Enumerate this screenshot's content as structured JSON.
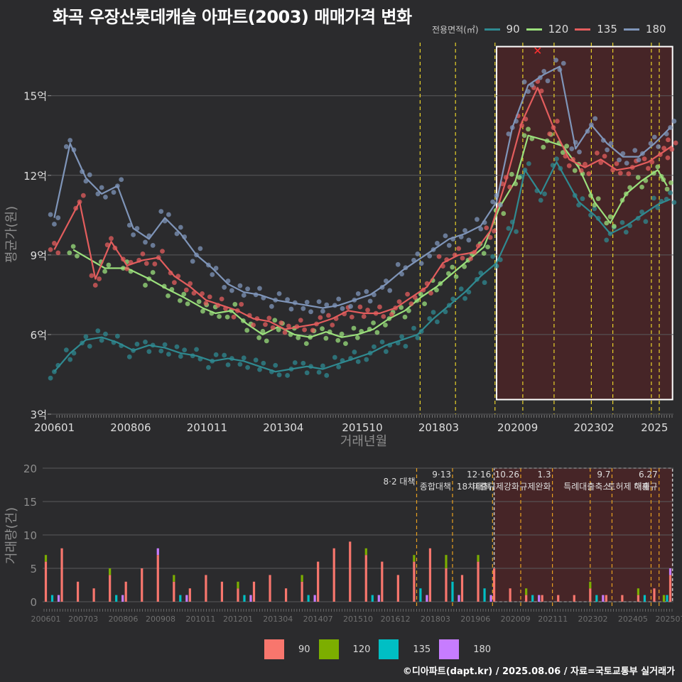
{
  "chart_data": [
    {
      "type": "line",
      "title": "화곡 우장산롯데캐슬 아파트(2003) 매매가격 변화",
      "xlabel": "거래년월",
      "ylabel": "평균가(원)",
      "x_ticks": [
        "200601",
        "200806",
        "201011",
        "201304",
        "201510",
        "201803",
        "202009",
        "202302",
        "2025"
      ],
      "y_ticks": [
        {
          "value": 3,
          "label": "3억"
        },
        {
          "value": 6,
          "label": "6억"
        },
        {
          "value": 9,
          "label": "9억"
        },
        {
          "value": 12,
          "label": "12억"
        },
        {
          "value": 15,
          "label": "15억"
        }
      ],
      "ylim": [
        3,
        17
      ],
      "xlim": [
        2005.9,
        2025.6
      ],
      "legend_title": "전용면적(㎡)",
      "legend_position": "top-right",
      "grid": true,
      "policy_lines_x": [
        2017.58,
        2018.7,
        2019.95,
        2020.83,
        2021.82,
        2023.0,
        2023.68,
        2024.9,
        2025.15
      ],
      "highlight_box": {
        "x": [
          2020.0,
          2025.57
        ],
        "y": [
          3.55,
          16.85
        ]
      },
      "highlight_marker": {
        "x": 2021.3,
        "y": 16.7
      },
      "series": [
        {
          "name": "90",
          "color": "#2f8a91",
          "scatter": true,
          "x": [
            2006.0,
            2006.5,
            2007.0,
            2007.5,
            2008.0,
            2008.5,
            2009.0,
            2009.5,
            2010.0,
            2010.5,
            2011.0,
            2011.5,
            2012.0,
            2012.5,
            2013.0,
            2013.5,
            2014.0,
            2014.5,
            2015.0,
            2015.5,
            2016.0,
            2016.5,
            2017.0,
            2017.5,
            2018.0,
            2018.5,
            2019.0,
            2019.5,
            2020.0,
            2020.5,
            2020.9,
            2021.4,
            2021.9,
            2022.6,
            2023.1,
            2023.6,
            2024.1,
            2024.6,
            2025.1,
            2025.5
          ],
          "y": [
            4.6,
            5.3,
            5.8,
            5.9,
            5.7,
            5.4,
            5.6,
            5.5,
            5.3,
            5.2,
            5.0,
            5.1,
            5.0,
            4.8,
            4.6,
            4.7,
            4.8,
            4.7,
            4.9,
            5.1,
            5.3,
            5.6,
            5.8,
            6.0,
            6.6,
            7.1,
            7.6,
            8.2,
            8.7,
            10.0,
            12.2,
            11.3,
            12.5,
            11.0,
            10.5,
            9.8,
            10.1,
            10.5,
            10.9,
            11.1
          ]
        },
        {
          "name": "120",
          "color": "#9be07c",
          "scatter": true,
          "x": [
            2006.6,
            2007.6,
            2008.3,
            2009.0,
            2009.6,
            2010.1,
            2010.7,
            2011.1,
            2011.6,
            2012.1,
            2012.6,
            2013.1,
            2013.6,
            2014.1,
            2014.6,
            2015.1,
            2015.6,
            2016.1,
            2016.6,
            2017.1,
            2017.6,
            2018.1,
            2018.6,
            2019.1,
            2019.6,
            2020.1,
            2020.6,
            2021.0,
            2021.6,
            2022.1,
            2022.6,
            2023.1,
            2023.6,
            2024.1,
            2024.6,
            2025.1,
            2025.4
          ],
          "y": [
            9.2,
            8.5,
            8.5,
            8.1,
            7.7,
            7.4,
            7.0,
            6.8,
            6.9,
            6.4,
            6.0,
            6.3,
            6.0,
            5.9,
            6.1,
            5.9,
            6.0,
            6.2,
            6.6,
            6.9,
            7.4,
            7.8,
            8.3,
            8.8,
            9.3,
            10.8,
            11.8,
            13.5,
            13.3,
            13.1,
            12.3,
            11.0,
            10.2,
            11.3,
            11.8,
            12.2,
            11.6
          ]
        },
        {
          "name": "135",
          "color": "#e35d5d",
          "scatter": true,
          "x": [
            2006.0,
            2006.8,
            2007.3,
            2007.8,
            2008.3,
            2008.8,
            2009.3,
            2009.8,
            2010.3,
            2010.8,
            2011.3,
            2011.8,
            2012.3,
            2012.8,
            2013.3,
            2013.8,
            2014.3,
            2014.8,
            2015.3,
            2015.8,
            2016.3,
            2016.8,
            2017.3,
            2017.8,
            2018.3,
            2018.8,
            2019.3,
            2019.8,
            2020.3,
            2020.8,
            2021.3,
            2021.8,
            2022.3,
            2022.8,
            2023.3,
            2023.8,
            2024.3,
            2024.8,
            2025.3,
            2025.55
          ],
          "y": [
            9.2,
            11.0,
            8.1,
            9.5,
            8.6,
            8.8,
            8.9,
            8.2,
            7.8,
            7.3,
            7.1,
            6.9,
            6.6,
            6.5,
            6.2,
            6.3,
            6.4,
            6.6,
            6.9,
            6.8,
            6.8,
            7.0,
            7.4,
            7.8,
            8.7,
            9.0,
            9.1,
            9.9,
            11.8,
            14.0,
            15.3,
            13.8,
            12.6,
            12.3,
            12.6,
            12.2,
            12.3,
            12.5,
            12.9,
            13.1
          ]
        },
        {
          "name": "180",
          "color": "#7f95b9",
          "scatter": true,
          "x": [
            2006.0,
            2006.5,
            2007.0,
            2007.5,
            2008.0,
            2008.5,
            2009.0,
            2009.5,
            2010.0,
            2010.5,
            2011.0,
            2011.5,
            2012.0,
            2012.5,
            2013.0,
            2013.5,
            2014.0,
            2014.5,
            2015.0,
            2015.5,
            2016.0,
            2016.5,
            2017.0,
            2017.5,
            2018.0,
            2018.5,
            2019.0,
            2019.5,
            2020.0,
            2020.5,
            2021.0,
            2021.5,
            2022.0,
            2022.5,
            2023.0,
            2023.5,
            2024.0,
            2024.5,
            2025.0,
            2025.5
          ],
          "y": [
            10.4,
            13.2,
            11.9,
            11.3,
            11.6,
            10.0,
            9.6,
            10.4,
            9.8,
            9.0,
            8.5,
            7.9,
            7.6,
            7.5,
            7.3,
            7.2,
            7.1,
            7.0,
            7.1,
            7.3,
            7.5,
            7.9,
            8.4,
            8.8,
            9.2,
            9.6,
            9.8,
            10.1,
            11.0,
            13.8,
            15.4,
            15.8,
            16.1,
            13.0,
            13.9,
            13.2,
            12.7,
            12.7,
            13.2,
            13.8
          ]
        }
      ]
    },
    {
      "type": "bar",
      "stacked": true,
      "xlabel": "",
      "ylabel": "거래량(건)",
      "x_ticks": [
        "200601",
        "200703",
        "200806",
        "200908",
        "201011",
        "201201",
        "201304",
        "201407",
        "201510",
        "201612",
        "201803",
        "201906",
        "202009",
        "202111",
        "202302",
        "202405",
        "202507"
      ],
      "y_ticks": [
        0,
        5,
        10,
        15,
        20
      ],
      "ylim": [
        0,
        20
      ],
      "xlim": [
        2005.9,
        2025.6
      ],
      "legend_position": "bottom",
      "highlight_box": {
        "x": [
          2020.0,
          2025.57
        ],
        "y": [
          0,
          20
        ]
      },
      "policy_lines_x": [
        2017.58,
        2018.7,
        2019.95,
        2020.83,
        2021.82,
        2023.0,
        2023.68,
        2024.9,
        2025.15
      ],
      "annotations": [
        {
          "x": 2017.58,
          "lines": [
            "8·2 대책"
          ]
        },
        {
          "x": 2018.7,
          "lines": [
            "9·13",
            "종합대책"
          ]
        },
        {
          "x": 2019.95,
          "lines": [
            "12·16",
            "18차대책"
          ]
        },
        {
          "x": 2020.83,
          "lines": [
            "10.26",
            "대출규제강화"
          ]
        },
        {
          "x": 2021.82,
          "lines": [
            "1.3",
            "규제완화"
          ]
        },
        {
          "x": 2023.68,
          "lines": [
            "9.7",
            "특례대출축소"
          ]
        },
        {
          "x": 2024.9,
          "lines": [
            "",
            "토허제 해제"
          ]
        },
        {
          "x": 2025.15,
          "lines": [
            "6.27",
            "대출규"
          ]
        }
      ],
      "series": [
        {
          "name": "90",
          "color": "#f8766d",
          "x": [
            2006.0,
            2006.5,
            2007.0,
            2007.5,
            2008.0,
            2008.5,
            2009.0,
            2009.5,
            2010.0,
            2010.5,
            2011.0,
            2011.5,
            2012.0,
            2012.5,
            2013.0,
            2013.5,
            2014.0,
            2014.5,
            2015.0,
            2015.5,
            2016.0,
            2016.5,
            2017.0,
            2017.5,
            2018.0,
            2018.5,
            2019.0,
            2019.5,
            2020.0,
            2020.5,
            2021.0,
            2021.5,
            2022.0,
            2022.5,
            2023.0,
            2023.5,
            2024.0,
            2024.5,
            2025.0,
            2025.5
          ],
          "values": [
            6,
            8,
            3,
            2,
            4,
            3,
            5,
            7,
            3,
            2,
            4,
            3,
            2,
            3,
            4,
            2,
            3,
            6,
            8,
            9,
            7,
            6,
            4,
            6,
            8,
            5,
            4,
            6,
            5,
            2,
            1,
            1,
            1,
            1,
            2,
            1,
            1,
            1,
            2,
            4
          ]
        },
        {
          "name": "120",
          "color": "#7cae00",
          "x": [
            2006.0,
            2008.0,
            2010.0,
            2012.0,
            2014.0,
            2016.0,
            2017.5,
            2018.5,
            2019.5,
            2021.0,
            2023.0,
            2024.5,
            2025.3
          ],
          "values": [
            1,
            1,
            1,
            1,
            1,
            1,
            1,
            2,
            1,
            1,
            1,
            1,
            1
          ]
        },
        {
          "name": "135",
          "color": "#00bfc4",
          "x": [
            2006.2,
            2008.2,
            2010.2,
            2012.2,
            2014.2,
            2016.2,
            2017.7,
            2018.7,
            2019.7,
            2021.2,
            2023.2,
            2024.7,
            2025.4
          ],
          "values": [
            1,
            1,
            1,
            1,
            1,
            1,
            2,
            3,
            2,
            1,
            1,
            1,
            1
          ]
        },
        {
          "name": "180",
          "color": "#c77cff",
          "x": [
            2006.4,
            2008.4,
            2009.5,
            2010.4,
            2012.4,
            2014.4,
            2016.4,
            2017.9,
            2018.9,
            2019.9,
            2021.4,
            2023.4,
            2025.5
          ],
          "values": [
            1,
            1,
            1,
            1,
            1,
            1,
            1,
            1,
            1,
            1,
            1,
            1,
            1
          ]
        }
      ]
    }
  ],
  "legend_top": {
    "title": "전용면적(㎡)",
    "items": [
      {
        "label": "90",
        "color": "#2f8a91"
      },
      {
        "label": "120",
        "color": "#9be07c"
      },
      {
        "label": "135",
        "color": "#e35d5d"
      },
      {
        "label": "180",
        "color": "#7f95b9"
      }
    ]
  },
  "legend_bottom": {
    "items": [
      {
        "label": "90",
        "color": "#f8766d"
      },
      {
        "label": "120",
        "color": "#7cae00"
      },
      {
        "label": "135",
        "color": "#00bfc4"
      },
      {
        "label": "180",
        "color": "#c77cff"
      }
    ]
  },
  "credit": "©디아파트(dapt.kr) / 2025.08.06 / 자료=국토교통부 실거래가"
}
